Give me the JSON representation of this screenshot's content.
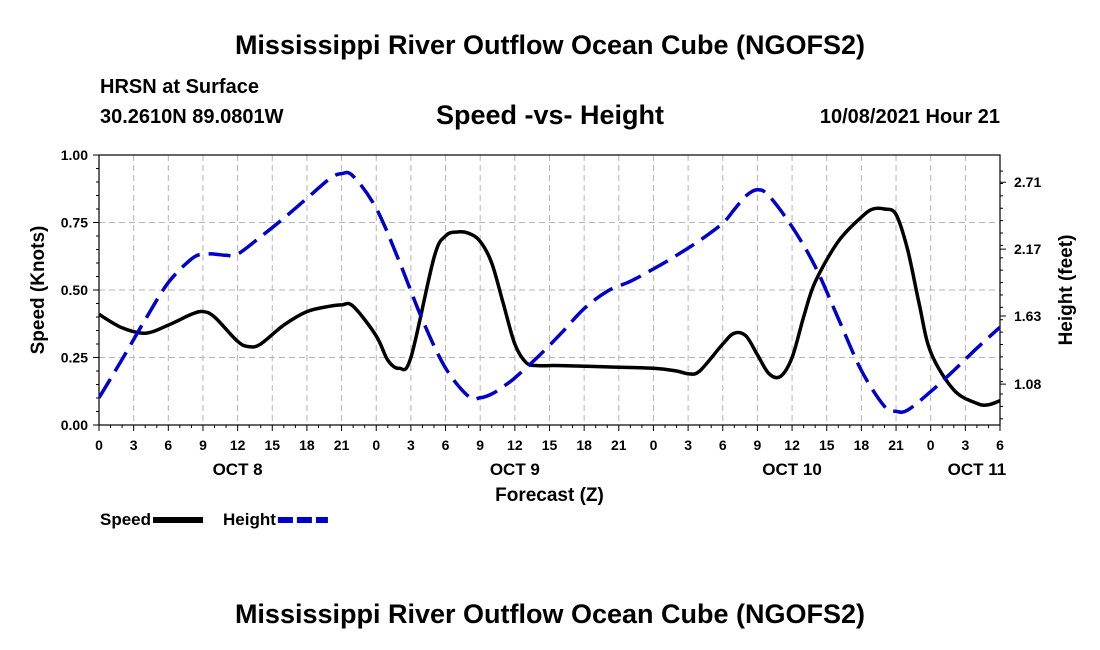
{
  "header": {
    "title": "Mississippi River Outflow Ocean Cube (NGOFS2)",
    "station": "HRSN at Surface",
    "coords": "30.2610N  89.0801W",
    "subtitle": "Speed -vs- Height",
    "datetime": "10/08/2021 Hour 21",
    "footer_title": "Mississippi River Outflow Ocean Cube (NGOFS2)"
  },
  "colors": {
    "speed": "#000000",
    "height": "#0000cc",
    "grid": "#b4b4b4"
  },
  "chart_data": {
    "type": "line",
    "xlabel": "Forecast (Z)",
    "x_range": [
      0,
      78
    ],
    "x_ticks": [
      {
        "x": 0,
        "label": "0"
      },
      {
        "x": 3,
        "label": "3"
      },
      {
        "x": 6,
        "label": "6"
      },
      {
        "x": 9,
        "label": "9"
      },
      {
        "x": 12,
        "label": "12"
      },
      {
        "x": 15,
        "label": "15"
      },
      {
        "x": 18,
        "label": "18"
      },
      {
        "x": 21,
        "label": "21"
      },
      {
        "x": 24,
        "label": "0"
      },
      {
        "x": 27,
        "label": "3"
      },
      {
        "x": 30,
        "label": "6"
      },
      {
        "x": 33,
        "label": "9"
      },
      {
        "x": 36,
        "label": "12"
      },
      {
        "x": 39,
        "label": "15"
      },
      {
        "x": 42,
        "label": "18"
      },
      {
        "x": 45,
        "label": "21"
      },
      {
        "x": 48,
        "label": "0"
      },
      {
        "x": 51,
        "label": "3"
      },
      {
        "x": 54,
        "label": "6"
      },
      {
        "x": 57,
        "label": "9"
      },
      {
        "x": 60,
        "label": "12"
      },
      {
        "x": 63,
        "label": "15"
      },
      {
        "x": 66,
        "label": "18"
      },
      {
        "x": 69,
        "label": "21"
      },
      {
        "x": 72,
        "label": "0"
      },
      {
        "x": 75,
        "label": "3"
      },
      {
        "x": 78,
        "label": "6"
      }
    ],
    "day_labels": [
      {
        "x": 12,
        "label": "OCT 8"
      },
      {
        "x": 36,
        "label": "OCT 9"
      },
      {
        "x": 60,
        "label": "OCT 10"
      },
      {
        "x": 76,
        "label": "OCT 11"
      }
    ],
    "y_left": {
      "label": "Speed (Knots)",
      "range": [
        0,
        1
      ],
      "ticks": [
        0,
        0.25,
        0.5,
        0.75,
        1.0
      ],
      "tick_labels": [
        "0.00",
        "0.25",
        "0.50",
        "0.75",
        "1.00"
      ]
    },
    "y_right": {
      "label": "Height (feet)",
      "range": [
        0.75,
        2.93
      ],
      "ticks": [
        1.08,
        1.63,
        2.17,
        2.71
      ],
      "tick_labels": [
        "1.08",
        "1.63",
        "2.17",
        "2.71"
      ]
    },
    "series": [
      {
        "name": "Speed",
        "axis": "left",
        "style": "solid",
        "x": [
          0,
          2,
          4,
          6,
          8,
          9,
          10,
          12,
          13,
          14,
          16,
          18,
          20,
          21,
          22,
          24,
          25,
          26,
          27,
          29,
          30,
          31,
          32,
          33,
          34,
          35,
          36,
          37,
          38,
          39,
          40,
          44,
          48,
          50,
          51,
          52,
          54,
          55,
          56,
          57,
          58,
          59,
          60,
          61,
          62,
          64,
          66,
          67,
          68,
          69,
          70,
          71,
          72,
          74,
          76,
          77,
          78
        ],
        "y": [
          0.41,
          0.36,
          0.34,
          0.37,
          0.41,
          0.42,
          0.4,
          0.31,
          0.29,
          0.3,
          0.37,
          0.42,
          0.44,
          0.445,
          0.44,
          0.33,
          0.24,
          0.21,
          0.25,
          0.62,
          0.7,
          0.715,
          0.71,
          0.68,
          0.6,
          0.45,
          0.3,
          0.23,
          0.22,
          0.22,
          0.22,
          0.215,
          0.21,
          0.2,
          0.19,
          0.2,
          0.3,
          0.34,
          0.33,
          0.26,
          0.19,
          0.18,
          0.25,
          0.4,
          0.53,
          0.68,
          0.77,
          0.8,
          0.8,
          0.78,
          0.65,
          0.45,
          0.27,
          0.13,
          0.08,
          0.075,
          0.09
        ]
      },
      {
        "name": "Height",
        "axis": "right",
        "style": "dashed",
        "x": [
          0,
          2,
          4,
          6,
          8,
          9,
          10,
          11,
          12,
          14,
          16,
          18,
          20,
          21,
          22,
          24,
          26,
          28,
          30,
          32,
          33,
          34,
          35,
          36,
          38,
          40,
          42,
          44,
          46,
          48,
          50,
          52,
          54,
          55,
          56,
          57,
          58,
          60,
          62,
          64,
          66,
          68,
          69,
          70,
          72,
          74,
          76,
          78
        ],
        "y": [
          0.97,
          1.28,
          1.6,
          1.9,
          2.09,
          2.13,
          2.13,
          2.12,
          2.13,
          2.27,
          2.42,
          2.58,
          2.74,
          2.78,
          2.76,
          2.5,
          2.07,
          1.6,
          1.21,
          0.98,
          0.97,
          1.0,
          1.06,
          1.13,
          1.3,
          1.49,
          1.69,
          1.83,
          1.91,
          2.01,
          2.12,
          2.24,
          2.38,
          2.49,
          2.6,
          2.65,
          2.6,
          2.35,
          2.03,
          1.61,
          1.19,
          0.9,
          0.86,
          0.87,
          1.02,
          1.19,
          1.37,
          1.54
        ]
      }
    ],
    "legend": [
      {
        "name": "Speed",
        "style": "solid"
      },
      {
        "name": "Height",
        "style": "dashed"
      }
    ],
    "grid": true
  }
}
